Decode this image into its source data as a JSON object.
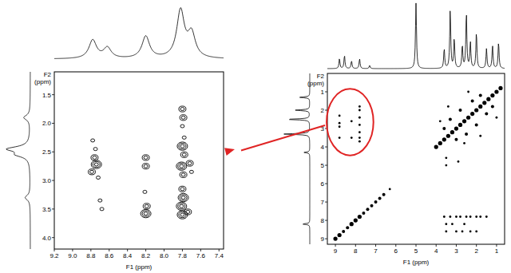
{
  "chart_data": [
    {
      "type": "contour",
      "xlabel": "F1 (ppm)",
      "ylabel": "F2 (ppm)",
      "xlim": [
        9.2,
        7.35
      ],
      "ylim": [
        1.1,
        4.2
      ],
      "xticks": [
        9.2,
        {
          "value": 9,
          "label": "9.0"
        },
        8.8,
        8.6,
        8.4,
        8.2,
        {
          "value": 8,
          "label": "8.0"
        },
        7.8,
        7.6,
        7.4
      ],
      "yticks": [
        1.5,
        {
          "value": 2,
          "label": "2.0"
        },
        2.5,
        {
          "value": 3,
          "label": "3.0"
        },
        3.5,
        {
          "value": 4,
          "label": "4.0"
        }
      ],
      "color": "#000000",
      "peaks": {
        "f1": [
          8.78,
          8.75,
          8.76,
          8.74,
          8.79,
          8.72,
          8.7,
          8.68,
          8.2,
          8.2,
          8.21,
          8.19,
          8.2,
          7.8,
          7.79,
          7.8,
          7.78,
          7.8,
          7.78,
          7.81,
          7.79,
          7.8,
          7.79,
          7.81,
          7.8,
          7.72,
          7.7,
          7.74
        ],
        "f2": [
          2.3,
          2.45,
          2.6,
          2.72,
          2.85,
          2.95,
          3.35,
          3.5,
          2.6,
          2.75,
          3.2,
          3.45,
          3.58,
          1.75,
          1.9,
          2.05,
          2.25,
          2.4,
          2.55,
          2.75,
          2.9,
          3.15,
          3.3,
          3.45,
          3.6,
          2.7,
          2.85,
          3.55
        ],
        "intensity": [
          1,
          1,
          2,
          3,
          2,
          1,
          1,
          1,
          2,
          2,
          1,
          2,
          3,
          2,
          2,
          1,
          1,
          3,
          2,
          3,
          2,
          2,
          3,
          3,
          3,
          2,
          1,
          2
        ]
      },
      "projection_f1": {
        "positions": [
          8.78,
          8.62,
          8.2,
          7.82,
          7.7
        ],
        "heights": [
          0.35,
          0.2,
          0.42,
          0.9,
          0.45
        ]
      },
      "projection_f2": {
        "positions": [
          1.9,
          2.45,
          2.55,
          3.3
        ],
        "heights": [
          0.25,
          0.85,
          0.45,
          0.2
        ]
      }
    },
    {
      "type": "contour",
      "xlabel": "F1 (ppm)",
      "ylabel": "F2 (ppm)",
      "xlim": [
        9.4,
        0.6
      ],
      "ylim": [
        0,
        9.3
      ],
      "xticks": [
        9,
        8,
        7,
        6,
        5,
        4,
        3,
        2,
        1
      ],
      "yticks": [
        1,
        2,
        3,
        4,
        5,
        6,
        7,
        8,
        9
      ],
      "color": "#000000",
      "peaks": {
        "f1": [
          9.0,
          8.8,
          8.6,
          8.4,
          8.2,
          8.0,
          7.8,
          7.6,
          7.4,
          7.2,
          7.0,
          6.8,
          6.6,
          6.3,
          4.0,
          3.8,
          3.6,
          3.4,
          3.2,
          3.0,
          2.8,
          2.6,
          2.4,
          2.2,
          2.0,
          1.8,
          1.6,
          1.4,
          1.2,
          1.0,
          0.8,
          3.6,
          3.0,
          3.3,
          2.5,
          2.8,
          2.0,
          2.2,
          1.5,
          1.8,
          1.2,
          3.8,
          2.6,
          3.4,
          1.8,
          2.4,
          1.0,
          3.5,
          3.5,
          2.9,
          8.8,
          8.8,
          8.8,
          8.8,
          8.2,
          8.2,
          7.8,
          7.8,
          7.8,
          7.8,
          7.8,
          7.8,
          7.8,
          3.6,
          3.3,
          3.0,
          2.8,
          2.5,
          2.3,
          2.0,
          1.8,
          1.5,
          3.5,
          3.2,
          2.6,
          3.5,
          3.0,
          2.7,
          2.3,
          2.0
        ],
        "f2": [
          9.0,
          8.8,
          8.6,
          8.4,
          8.2,
          8.0,
          7.8,
          7.6,
          7.4,
          7.2,
          7.0,
          6.8,
          6.6,
          6.3,
          4.0,
          3.8,
          3.6,
          3.4,
          3.2,
          3.0,
          2.8,
          2.6,
          2.4,
          2.2,
          2.0,
          1.8,
          1.6,
          1.4,
          1.2,
          1.0,
          0.8,
          3.0,
          3.6,
          2.5,
          3.3,
          2.0,
          2.8,
          1.5,
          2.2,
          1.2,
          1.8,
          2.6,
          3.8,
          1.8,
          3.4,
          1.0,
          2.4,
          4.6,
          5.0,
          4.8,
          2.3,
          2.7,
          2.9,
          3.5,
          2.6,
          3.5,
          1.8,
          2.0,
          2.4,
          2.8,
          3.2,
          3.5,
          3.7,
          7.8,
          7.8,
          7.8,
          7.8,
          7.8,
          7.8,
          7.8,
          7.8,
          7.8,
          8.2,
          8.2,
          8.2,
          8.6,
          8.6,
          8.6,
          8.6,
          8.6
        ],
        "intensity": [
          3,
          3,
          2,
          2,
          3,
          3,
          3,
          2,
          2,
          2,
          2,
          2,
          2,
          1,
          3,
          3,
          3,
          3,
          3,
          3,
          3,
          3,
          3,
          3,
          3,
          3,
          3,
          3,
          3,
          3,
          3,
          2,
          2,
          2,
          2,
          2,
          2,
          2,
          2,
          2,
          2,
          1,
          1,
          1,
          1,
          1,
          1,
          1,
          1,
          1,
          1,
          1,
          1,
          1,
          1,
          1,
          1,
          1,
          1,
          1,
          1,
          1,
          1,
          1,
          1,
          1,
          1,
          1,
          1,
          1,
          1,
          1,
          1,
          1,
          1,
          1,
          1,
          1,
          1,
          1
        ]
      },
      "projection_f1": {
        "positions": [
          8.8,
          8.55,
          8.2,
          7.8,
          7.3,
          5.0,
          3.6,
          3.3,
          3.1,
          2.7,
          2.5,
          2.3,
          2.0,
          1.5,
          1.2,
          0.9
        ],
        "heights": [
          0.15,
          0.2,
          0.12,
          0.15,
          0.05,
          1.0,
          0.3,
          0.9,
          0.45,
          0.35,
          0.85,
          0.4,
          0.55,
          0.3,
          0.35,
          0.4
        ]
      },
      "projection_f2": {
        "positions": [
          1.3,
          2.0,
          2.5,
          3.3,
          4.3,
          8.2
        ],
        "heights": [
          0.35,
          0.5,
          0.8,
          0.9,
          0.2,
          0.25
        ]
      }
    }
  ]
}
